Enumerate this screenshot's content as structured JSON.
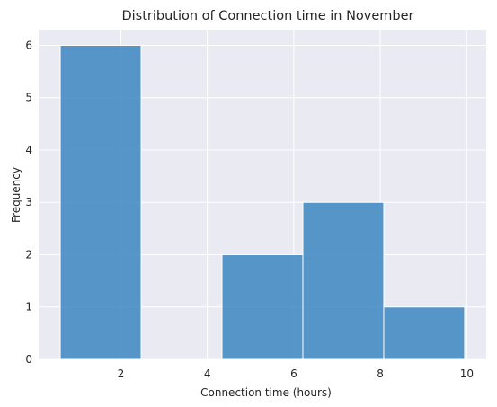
{
  "chart_data": {
    "type": "bar",
    "title": "Distribution of Connection time in November",
    "xlabel": "Connection time (hours)",
    "ylabel": "Frequency",
    "bins": [
      {
        "x0": 0.6,
        "x1": 2.47,
        "count": 6
      },
      {
        "x0": 2.47,
        "x1": 4.34,
        "count": 0
      },
      {
        "x0": 4.34,
        "x1": 6.21,
        "count": 2
      },
      {
        "x0": 6.21,
        "x1": 8.08,
        "count": 3
      },
      {
        "x0": 8.08,
        "x1": 9.95,
        "count": 1
      }
    ],
    "xlim": [
      0.1,
      10.45
    ],
    "ylim": [
      0,
      6.3
    ],
    "xticks": [
      2,
      4,
      6,
      8,
      10
    ],
    "yticks": [
      0,
      1,
      2,
      3,
      4,
      5,
      6
    ],
    "grid": true,
    "background_color": "#eaeaf2",
    "bar_color": "#3b86bf"
  }
}
